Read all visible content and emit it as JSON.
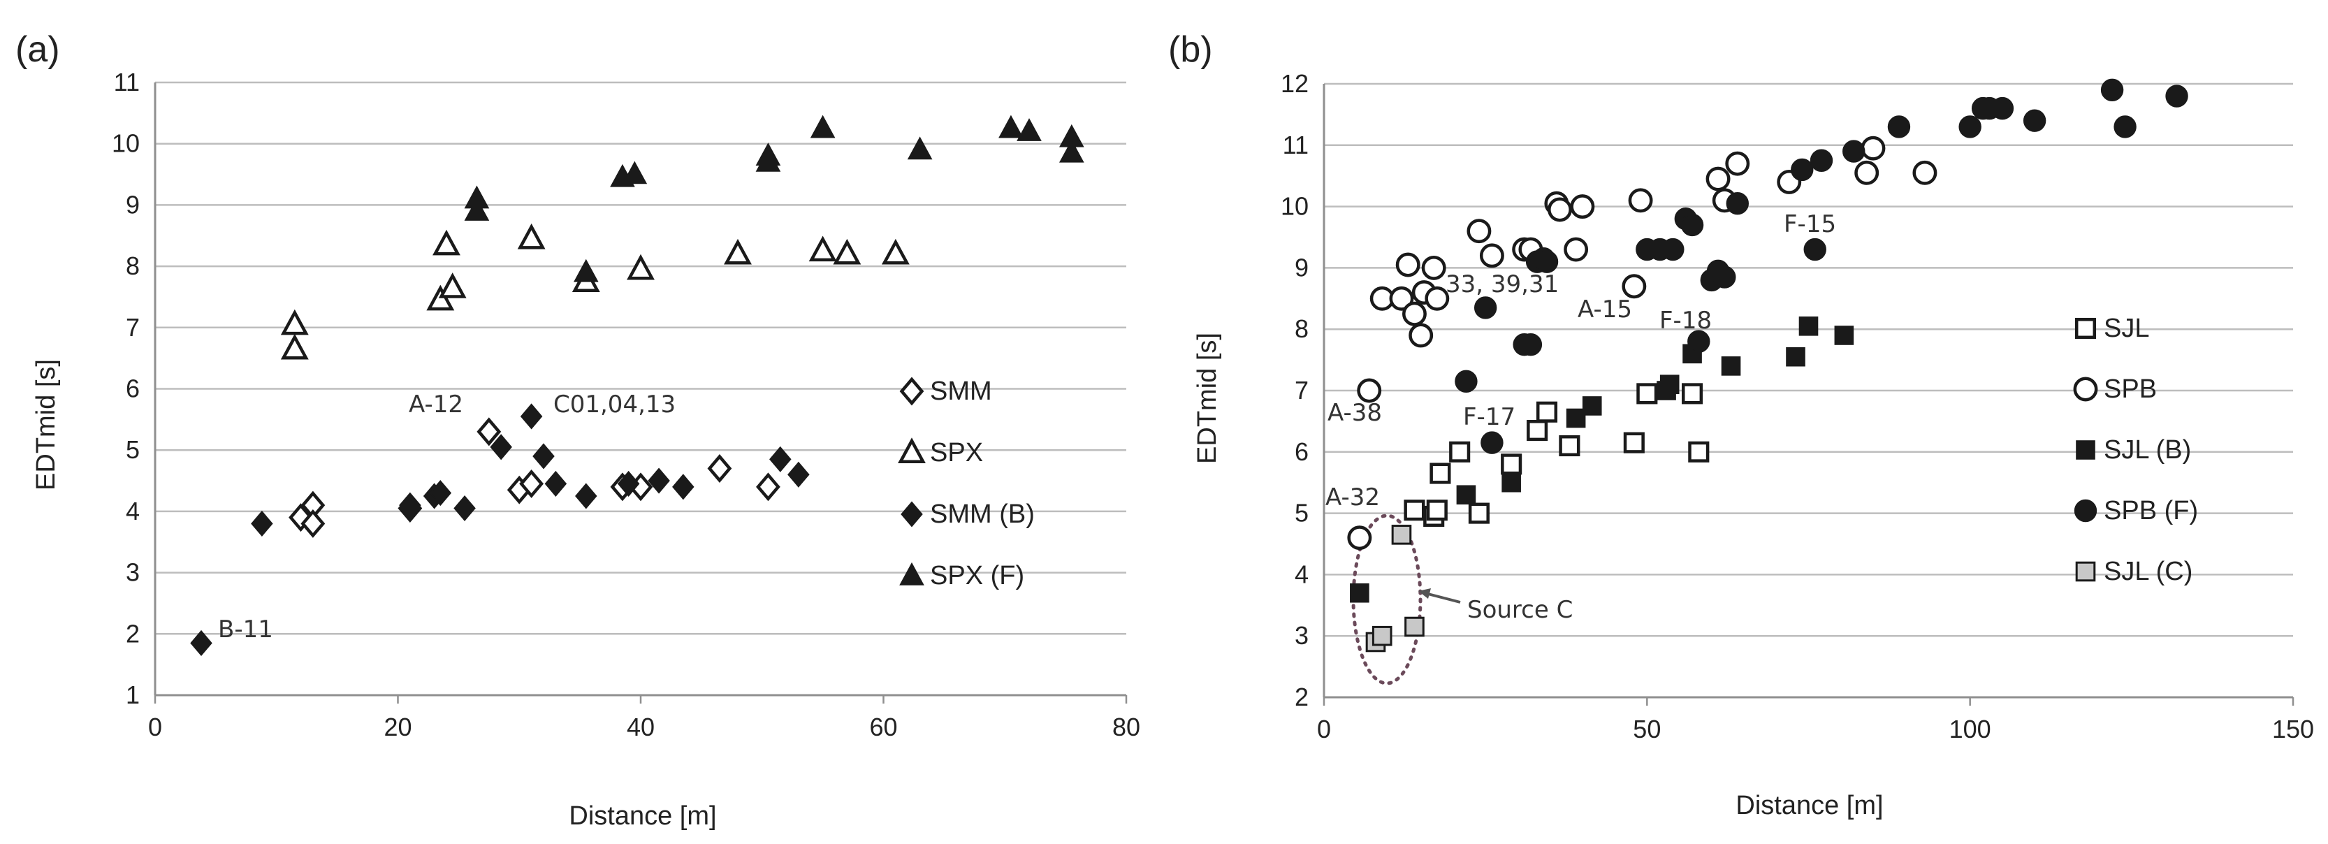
{
  "chart_data": [
    {
      "panel_label": "(a)",
      "type": "scatter",
      "xlabel": "Distance [m]",
      "ylabel": "EDTmid [s]",
      "xlim": [
        0,
        80
      ],
      "ylim": [
        1,
        11
      ],
      "xticks": [
        0,
        20,
        40,
        60,
        80
      ],
      "yticks": [
        1,
        2,
        3,
        4,
        5,
        6,
        7,
        8,
        9,
        10,
        11
      ],
      "grid": "horizontal",
      "legend": "right",
      "series": [
        {
          "name": "SMM",
          "marker": "diamond-open",
          "x": [
            12,
            13,
            13,
            21,
            27.5,
            30,
            31,
            38.5,
            40,
            46.5,
            50.5
          ],
          "y": [
            3.9,
            4.1,
            3.8,
            4.05,
            5.3,
            4.35,
            4.45,
            4.4,
            4.4,
            4.7,
            4.4
          ]
        },
        {
          "name": "SPX",
          "marker": "triangle-open",
          "x": [
            11.5,
            11.5,
            23.5,
            24,
            24.5,
            31,
            35.5,
            40,
            48,
            55,
            57,
            61
          ],
          "y": [
            7.05,
            6.65,
            7.45,
            8.35,
            7.65,
            8.45,
            7.75,
            7.95,
            8.2,
            8.25,
            8.2,
            8.2
          ]
        },
        {
          "name": "SMM (B)",
          "marker": "diamond-filled",
          "x": [
            3.8,
            8.8,
            21,
            23,
            23.5,
            25.5,
            28.5,
            31,
            32,
            33,
            35.5,
            39,
            41.5,
            43.5,
            51.5,
            53
          ],
          "y": [
            1.85,
            3.8,
            4.1,
            4.25,
            4.3,
            4.05,
            5.05,
            5.55,
            4.9,
            4.45,
            4.25,
            4.45,
            4.5,
            4.4,
            4.85,
            4.6
          ]
        },
        {
          "name": "SPX (F)",
          "marker": "triangle-filled",
          "x": [
            26.5,
            26.5,
            35.5,
            38.5,
            39.5,
            50.5,
            50.5,
            55,
            63,
            70.5,
            72,
            75.5,
            75.5
          ],
          "y": [
            9.1,
            8.9,
            7.9,
            9.45,
            9.5,
            9.8,
            9.7,
            10.25,
            9.9,
            10.25,
            10.2,
            10.1,
            9.85
          ]
        }
      ],
      "annotations": [
        {
          "text": "A-12",
          "x": 27.5,
          "y": 5.3
        },
        {
          "text": "C01,04,13",
          "x": 31,
          "y": 5.55
        },
        {
          "text": "B-11",
          "x": 3.8,
          "y": 1.85
        }
      ]
    },
    {
      "panel_label": "(b)",
      "type": "scatter",
      "xlabel": "Distance [m]",
      "ylabel": "EDTmid [s]",
      "xlim": [
        0,
        150
      ],
      "ylim": [
        2,
        12
      ],
      "xticks": [
        0,
        50,
        100,
        150
      ],
      "yticks": [
        2,
        3,
        4,
        5,
        6,
        7,
        8,
        9,
        10,
        11,
        12
      ],
      "grid": "horizontal",
      "legend": "right",
      "series": [
        {
          "name": "SJL",
          "marker": "square-open",
          "x": [
            14,
            17,
            17.5,
            18,
            21,
            24,
            29,
            33,
            34.5,
            38,
            48,
            50,
            57,
            58
          ],
          "y": [
            5.05,
            4.95,
            5.05,
            5.65,
            6.0,
            5.0,
            5.8,
            6.35,
            6.65,
            6.1,
            6.15,
            6.95,
            6.95,
            6.0
          ]
        },
        {
          "name": "SPB",
          "marker": "circle-open",
          "x": [
            5.5,
            7,
            9,
            12,
            13,
            14,
            15,
            15.5,
            17,
            17.5,
            24,
            26,
            31,
            32,
            36,
            36.5,
            39,
            40,
            48,
            49,
            61,
            62,
            64,
            72,
            84,
            85,
            93
          ],
          "y": [
            4.6,
            7.0,
            8.5,
            8.5,
            9.05,
            8.25,
            7.9,
            8.6,
            9.0,
            8.5,
            9.6,
            9.2,
            9.3,
            9.3,
            10.05,
            9.95,
            9.3,
            10.0,
            8.7,
            10.1,
            10.45,
            10.1,
            10.7,
            10.4,
            10.55,
            10.95,
            10.55
          ]
        },
        {
          "name": "SJL (B)",
          "marker": "square-filled",
          "x": [
            5.5,
            22,
            29,
            39,
            41.5,
            53,
            53.5,
            57,
            63,
            73,
            75,
            80.5
          ],
          "y": [
            3.7,
            5.3,
            5.5,
            6.55,
            6.75,
            7.0,
            7.1,
            7.6,
            7.4,
            7.55,
            8.05,
            7.9
          ]
        },
        {
          "name": "SPB (F)",
          "marker": "circle-filled",
          "x": [
            22,
            25,
            26,
            31,
            32,
            33,
            34,
            34.5,
            50,
            52,
            54,
            56,
            57,
            58,
            60,
            61,
            62,
            64,
            74,
            77,
            76,
            82,
            89,
            100,
            102,
            103,
            105,
            110,
            122,
            124,
            132
          ],
          "y": [
            7.15,
            8.35,
            6.15,
            7.75,
            7.75,
            9.1,
            9.15,
            9.1,
            9.3,
            9.3,
            9.3,
            9.8,
            9.7,
            7.8,
            8.8,
            8.95,
            8.85,
            10.05,
            10.6,
            10.75,
            9.3,
            10.9,
            11.3,
            11.3,
            11.6,
            11.6,
            11.6,
            11.4,
            11.9,
            11.3,
            11.8
          ]
        },
        {
          "name": "SJL (C)",
          "marker": "square-light",
          "x": [
            8,
            9,
            12,
            14
          ],
          "y": [
            2.9,
            3.0,
            4.65,
            3.15
          ]
        }
      ],
      "annotations": [
        {
          "text": "A-38",
          "x": 7,
          "y": 7.0
        },
        {
          "text": "A-32",
          "x": 5.5,
          "y": 4.6
        },
        {
          "text": "33, 39,31",
          "x": 31,
          "y": 9.3
        },
        {
          "text": "A-15",
          "x": 49,
          "y": 10.1
        },
        {
          "text": "F-18",
          "x": 58,
          "y": 7.8
        },
        {
          "text": "F-17",
          "x": 26,
          "y": 6.15
        },
        {
          "text": "F-15",
          "x": 76,
          "y": 9.3
        },
        {
          "text": "Source C",
          "x": 12,
          "y": 3.5
        }
      ]
    }
  ]
}
